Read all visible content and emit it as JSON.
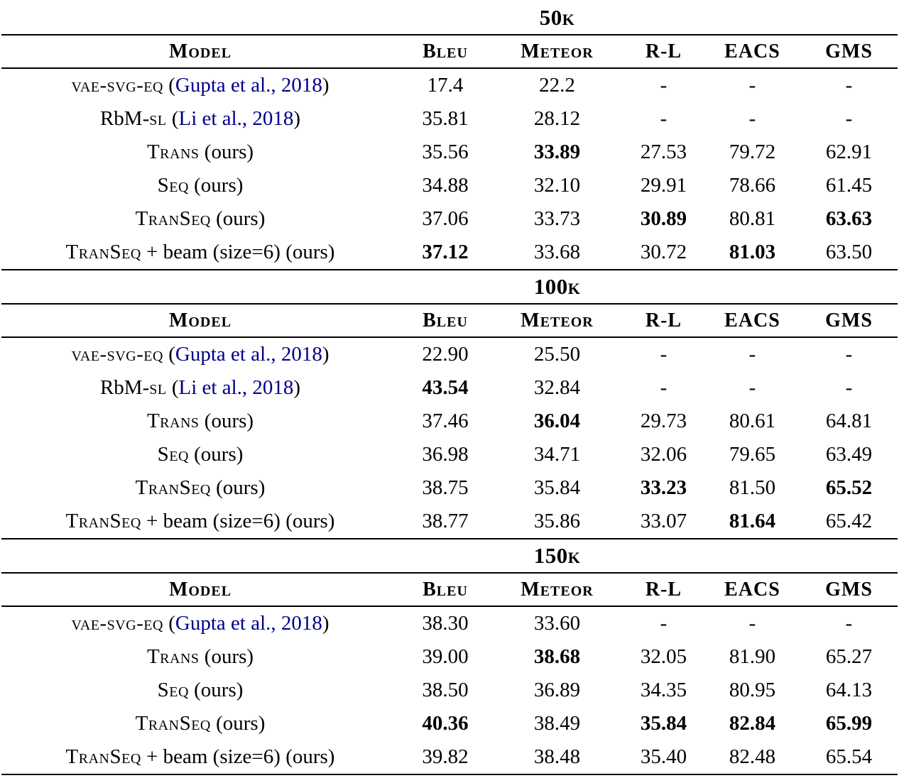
{
  "colors": {
    "citation": "#00008B",
    "text": "#000000",
    "background": "#FFFFFF",
    "rule": "#000000"
  },
  "columns": [
    "Model",
    "Bleu",
    "Meteor",
    "R-L",
    "EACS",
    "GMS"
  ],
  "sections": [
    {
      "title": "50k",
      "rows": [
        {
          "model": [
            {
              "t": "vae-svg-eq",
              "s": "sc"
            },
            {
              "t": " (",
              "s": "plain"
            },
            {
              "t": "Gupta et al., 2018",
              "s": "cite"
            },
            {
              "t": ")",
              "s": "plain"
            }
          ],
          "values": [
            {
              "v": "17.4",
              "b": false
            },
            {
              "v": "22.2",
              "b": false
            },
            {
              "v": "-",
              "b": false
            },
            {
              "v": "-",
              "b": false
            },
            {
              "v": "-",
              "b": false
            }
          ]
        },
        {
          "model": [
            {
              "t": "RbM-",
              "s": "plain"
            },
            {
              "t": "sl",
              "s": "sc"
            },
            {
              "t": " (",
              "s": "plain"
            },
            {
              "t": "Li et al., 2018",
              "s": "cite"
            },
            {
              "t": ")",
              "s": "plain"
            }
          ],
          "values": [
            {
              "v": "35.81",
              "b": false
            },
            {
              "v": "28.12",
              "b": false
            },
            {
              "v": "-",
              "b": false
            },
            {
              "v": "-",
              "b": false
            },
            {
              "v": "-",
              "b": false
            }
          ]
        },
        {
          "model": [
            {
              "t": "Trans",
              "s": "sc"
            },
            {
              "t": " (ours)",
              "s": "plain"
            }
          ],
          "values": [
            {
              "v": "35.56",
              "b": false
            },
            {
              "v": "33.89",
              "b": true
            },
            {
              "v": "27.53",
              "b": false
            },
            {
              "v": "79.72",
              "b": false
            },
            {
              "v": "62.91",
              "b": false
            }
          ]
        },
        {
          "model": [
            {
              "t": "Seq",
              "s": "sc"
            },
            {
              "t": " (ours)",
              "s": "plain"
            }
          ],
          "values": [
            {
              "v": "34.88",
              "b": false
            },
            {
              "v": "32.10",
              "b": false
            },
            {
              "v": "29.91",
              "b": false
            },
            {
              "v": "78.66",
              "b": false
            },
            {
              "v": "61.45",
              "b": false
            }
          ]
        },
        {
          "model": [
            {
              "t": "TranSeq",
              "s": "sc"
            },
            {
              "t": " (ours)",
              "s": "plain"
            }
          ],
          "values": [
            {
              "v": "37.06",
              "b": false
            },
            {
              "v": "33.73",
              "b": false
            },
            {
              "v": "30.89",
              "b": true
            },
            {
              "v": "80.81",
              "b": false
            },
            {
              "v": "63.63",
              "b": true
            }
          ]
        },
        {
          "model": [
            {
              "t": "TranSeq",
              "s": "sc"
            },
            {
              "t": " + beam (size=6) (ours)",
              "s": "plain"
            }
          ],
          "values": [
            {
              "v": "37.12",
              "b": true
            },
            {
              "v": "33.68",
              "b": false
            },
            {
              "v": "30.72",
              "b": false
            },
            {
              "v": "81.03",
              "b": true
            },
            {
              "v": "63.50",
              "b": false
            }
          ]
        }
      ]
    },
    {
      "title": "100k",
      "rows": [
        {
          "model": [
            {
              "t": "vae-svg-eq",
              "s": "sc"
            },
            {
              "t": " (",
              "s": "plain"
            },
            {
              "t": "Gupta et al., 2018",
              "s": "cite"
            },
            {
              "t": ")",
              "s": "plain"
            }
          ],
          "values": [
            {
              "v": "22.90",
              "b": false
            },
            {
              "v": "25.50",
              "b": false
            },
            {
              "v": "-",
              "b": false
            },
            {
              "v": "-",
              "b": false
            },
            {
              "v": "-",
              "b": false
            }
          ]
        },
        {
          "model": [
            {
              "t": "RbM-",
              "s": "plain"
            },
            {
              "t": "sl",
              "s": "sc"
            },
            {
              "t": " (",
              "s": "plain"
            },
            {
              "t": "Li et al., 2018",
              "s": "cite"
            },
            {
              "t": ")",
              "s": "plain"
            }
          ],
          "values": [
            {
              "v": "43.54",
              "b": true
            },
            {
              "v": "32.84",
              "b": false
            },
            {
              "v": "-",
              "b": false
            },
            {
              "v": "-",
              "b": false
            },
            {
              "v": "-",
              "b": false
            }
          ]
        },
        {
          "model": [
            {
              "t": "Trans",
              "s": "sc"
            },
            {
              "t": " (ours)",
              "s": "plain"
            }
          ],
          "values": [
            {
              "v": "37.46",
              "b": false
            },
            {
              "v": "36.04",
              "b": true
            },
            {
              "v": "29.73",
              "b": false
            },
            {
              "v": "80.61",
              "b": false
            },
            {
              "v": "64.81",
              "b": false
            }
          ]
        },
        {
          "model": [
            {
              "t": "Seq",
              "s": "sc"
            },
            {
              "t": " (ours)",
              "s": "plain"
            }
          ],
          "values": [
            {
              "v": "36.98",
              "b": false
            },
            {
              "v": "34.71",
              "b": false
            },
            {
              "v": "32.06",
              "b": false
            },
            {
              "v": "79.65",
              "b": false
            },
            {
              "v": "63.49",
              "b": false
            }
          ]
        },
        {
          "model": [
            {
              "t": "TranSeq",
              "s": "sc"
            },
            {
              "t": " (ours)",
              "s": "plain"
            }
          ],
          "values": [
            {
              "v": "38.75",
              "b": false
            },
            {
              "v": "35.84",
              "b": false
            },
            {
              "v": "33.23",
              "b": true
            },
            {
              "v": "81.50",
              "b": false
            },
            {
              "v": "65.52",
              "b": true
            }
          ]
        },
        {
          "model": [
            {
              "t": "TranSeq",
              "s": "sc"
            },
            {
              "t": " + beam (size=6) (ours)",
              "s": "plain"
            }
          ],
          "values": [
            {
              "v": "38.77",
              "b": false
            },
            {
              "v": "35.86",
              "b": false
            },
            {
              "v": "33.07",
              "b": false
            },
            {
              "v": "81.64",
              "b": true
            },
            {
              "v": "65.42",
              "b": false
            }
          ]
        }
      ]
    },
    {
      "title": "150k",
      "rows": [
        {
          "model": [
            {
              "t": "vae-svg-eq",
              "s": "sc"
            },
            {
              "t": " (",
              "s": "plain"
            },
            {
              "t": "Gupta et al., 2018",
              "s": "cite"
            },
            {
              "t": ")",
              "s": "plain"
            }
          ],
          "values": [
            {
              "v": "38.30",
              "b": false
            },
            {
              "v": "33.60",
              "b": false
            },
            {
              "v": "-",
              "b": false
            },
            {
              "v": "-",
              "b": false
            },
            {
              "v": "-",
              "b": false
            }
          ]
        },
        {
          "model": [
            {
              "t": "Trans",
              "s": "sc"
            },
            {
              "t": " (ours)",
              "s": "plain"
            }
          ],
          "values": [
            {
              "v": "39.00",
              "b": false
            },
            {
              "v": "38.68",
              "b": true
            },
            {
              "v": "32.05",
              "b": false
            },
            {
              "v": "81.90",
              "b": false
            },
            {
              "v": "65.27",
              "b": false
            }
          ]
        },
        {
          "model": [
            {
              "t": "Seq",
              "s": "sc"
            },
            {
              "t": " (ours)",
              "s": "plain"
            }
          ],
          "values": [
            {
              "v": "38.50",
              "b": false
            },
            {
              "v": "36.89",
              "b": false
            },
            {
              "v": "34.35",
              "b": false
            },
            {
              "v": "80.95",
              "b": false
            },
            {
              "v": "64.13",
              "b": false
            }
          ]
        },
        {
          "model": [
            {
              "t": "TranSeq",
              "s": "sc"
            },
            {
              "t": " (ours)",
              "s": "plain"
            }
          ],
          "values": [
            {
              "v": "40.36",
              "b": true
            },
            {
              "v": "38.49",
              "b": false
            },
            {
              "v": "35.84",
              "b": true
            },
            {
              "v": "82.84",
              "b": true
            },
            {
              "v": "65.99",
              "b": true
            }
          ]
        },
        {
          "model": [
            {
              "t": "TranSeq",
              "s": "sc"
            },
            {
              "t": " + beam (size=6) (ours)",
              "s": "plain"
            }
          ],
          "values": [
            {
              "v": "39.82",
              "b": false
            },
            {
              "v": "38.48",
              "b": false
            },
            {
              "v": "35.40",
              "b": false
            },
            {
              "v": "82.48",
              "b": false
            },
            {
              "v": "65.54",
              "b": false
            }
          ]
        }
      ]
    }
  ]
}
